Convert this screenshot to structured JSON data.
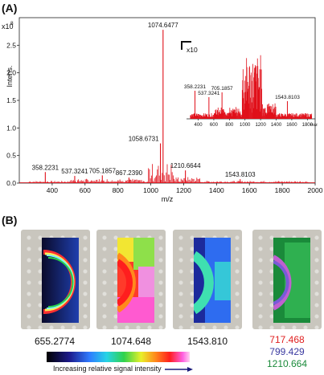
{
  "panel_a_label": "(A)",
  "panel_b_label": "(B)",
  "chart_data": {
    "type": "line",
    "ylabel": "Intens.",
    "y_exponent_label": "x10",
    "y_exponent_power": "8",
    "xlabel": "m/z",
    "xlim": [
      200,
      2000
    ],
    "ylim": [
      0,
      3.0
    ],
    "x_ticks": [
      400,
      600,
      800,
      1000,
      1200,
      1400,
      1600,
      1800,
      2000
    ],
    "y_ticks": [
      0.0,
      0.5,
      1.0,
      1.5,
      2.0,
      2.5
    ],
    "color": "#e0101a",
    "peaks": [
      {
        "mz": 358.2231,
        "intensity": 0.2,
        "label": "358.2231"
      },
      {
        "mz": 537.3241,
        "intensity": 0.13,
        "label": "537.3241"
      },
      {
        "mz": 705.1857,
        "intensity": 0.14,
        "label": "705.1857"
      },
      {
        "mz": 867.239,
        "intensity": 0.1,
        "label": "867.2390"
      },
      {
        "mz": 1058.6731,
        "intensity": 0.72,
        "label": "1058.6731"
      },
      {
        "mz": 1074.6477,
        "intensity": 2.78,
        "label": "1074.6477"
      },
      {
        "mz": 1210.6644,
        "intensity": 0.23,
        "label": "1210.6644"
      },
      {
        "mz": 1543.8103,
        "intensity": 0.07,
        "label": "1543.8103"
      }
    ],
    "inset": {
      "scale_label": "x10",
      "xlabel": "m/z",
      "x_ticks": [
        400,
        600,
        800,
        1000,
        1200,
        1400,
        1600,
        1800
      ],
      "xlim": [
        250,
        1900
      ],
      "peaks": [
        {
          "mz": 358.2231,
          "intensity": 0.35,
          "label": "358.2231"
        },
        {
          "mz": 537.3241,
          "intensity": 0.27,
          "label": "537.3241"
        },
        {
          "mz": 705.1857,
          "intensity": 0.33,
          "label": "705.1857"
        },
        {
          "mz": 1543.8103,
          "intensity": 0.22,
          "label": "1543.8103"
        }
      ]
    }
  },
  "imaging": [
    {
      "label": "655.2774",
      "color": "#111111"
    },
    {
      "label": "1074.648",
      "color": "#111111"
    },
    {
      "label": "1543.810",
      "color": "#111111"
    },
    {
      "labels": [
        "717.468",
        "799.429",
        "1210.664"
      ],
      "colors": [
        "#e02020",
        "#3a3aa0",
        "#1a8a3a"
      ]
    }
  ],
  "signal_bar_label": "Increasing relative signal intensity"
}
